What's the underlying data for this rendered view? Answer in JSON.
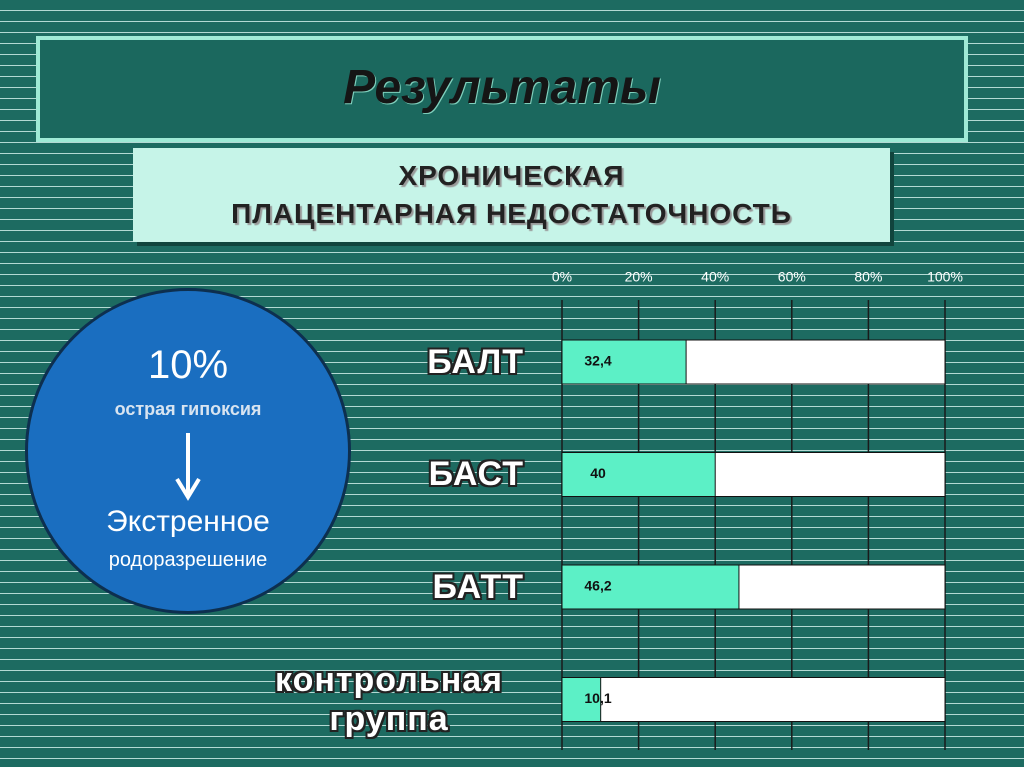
{
  "title": "Результаты",
  "subtitle": {
    "line1": "ХРОНИЧЕСКАЯ",
    "line2": "ПЛАЦЕНТАРНАЯ НЕДОСТАТОЧНОСТЬ"
  },
  "circle": {
    "percent": "10%",
    "label": "острая гипоксия",
    "action": "Экстренное",
    "action2": "родоразрешение"
  },
  "chart_data": {
    "type": "bar",
    "orientation": "horizontal",
    "categories": [
      "БАЛТ",
      "БАСТ",
      "БАТТ",
      "контрольная группа"
    ],
    "values": [
      32.4,
      40,
      46.2,
      10.1
    ],
    "value_labels": [
      "32,4",
      "40",
      "46,2",
      "10,1"
    ],
    "color": "#5cf0c6",
    "xlim": [
      0,
      100
    ],
    "xticks": [
      {
        "value": 0,
        "label": "0%"
      },
      {
        "value": 20,
        "label": "20%"
      },
      {
        "value": 40,
        "label": "40%"
      },
      {
        "value": 60,
        "label": "60%"
      },
      {
        "value": 80,
        "label": "80%"
      },
      {
        "value": 100,
        "label": "100%"
      }
    ],
    "grid": true
  }
}
